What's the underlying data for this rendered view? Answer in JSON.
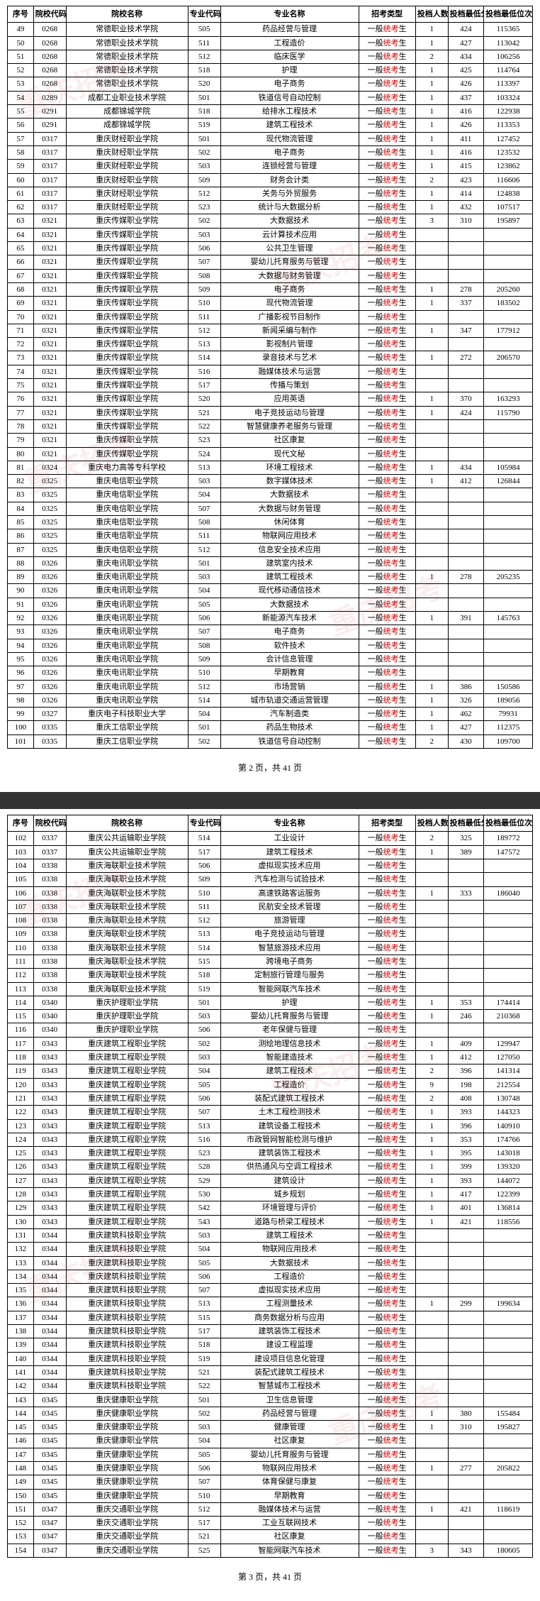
{
  "headers": [
    "序号",
    "院校代码",
    "院校名称",
    "专业代码",
    "专业名称",
    "招考类型",
    "投档人数",
    "投档最低分",
    "投档最低位次"
  ],
  "pager2": "第 2 页，共 41 页",
  "pager3": "第 3 页，共 41 页",
  "watermark": "重庆招考",
  "page2_rows": [
    [
      "49",
      "0268",
      "常德职业技术学院",
      "505",
      "药品经营与管理",
      "一般统考生",
      "1",
      "424",
      "115365"
    ],
    [
      "50",
      "0268",
      "常德职业技术学院",
      "511",
      "工程造价",
      "一般统考生",
      "1",
      "427",
      "113042"
    ],
    [
      "51",
      "0268",
      "常德职业技术学院",
      "512",
      "临床医学",
      "一般统考生",
      "2",
      "434",
      "106256"
    ],
    [
      "52",
      "0268",
      "常德职业技术学院",
      "518",
      "护理",
      "一般统考生",
      "1",
      "425",
      "114764"
    ],
    [
      "53",
      "0268",
      "常德职业技术学院",
      "520",
      "电子商务",
      "一般统考生",
      "1",
      "426",
      "113397"
    ],
    [
      "54",
      "0289",
      "成都工业职业技术学院",
      "501",
      "铁道信号自动控制",
      "一般统考生",
      "1",
      "437",
      "103324"
    ],
    [
      "55",
      "0291",
      "成都锦城学院",
      "518",
      "给排水工程技术",
      "一般统考生",
      "1",
      "416",
      "122938"
    ],
    [
      "56",
      "0291",
      "成都锦城学院",
      "519",
      "建筑工程技术",
      "一般统考生",
      "1",
      "426",
      "113353"
    ],
    [
      "57",
      "0317",
      "重庆财经职业学院",
      "501",
      "现代物流管理",
      "一般统考生",
      "1",
      "411",
      "127452"
    ],
    [
      "58",
      "0317",
      "重庆财经职业学院",
      "502",
      "电子商务",
      "一般统考生",
      "1",
      "416",
      "123532"
    ],
    [
      "59",
      "0317",
      "重庆财经职业学院",
      "503",
      "连锁经营与管理",
      "一般统考生",
      "1",
      "415",
      "123862"
    ],
    [
      "60",
      "0317",
      "重庆财经职业学院",
      "509",
      "财务会计类",
      "一般统考生",
      "2",
      "423",
      "116606"
    ],
    [
      "61",
      "0317",
      "重庆财经职业学院",
      "512",
      "关务与外贸服务",
      "一般统考生",
      "1",
      "414",
      "124838"
    ],
    [
      "62",
      "0317",
      "重庆财经职业学院",
      "523",
      "统计与大数据分析",
      "一般统考生",
      "1",
      "432",
      "107517"
    ],
    [
      "63",
      "0321",
      "重庆传媒职业学院",
      "502",
      "大数据技术",
      "一般统考生",
      "3",
      "310",
      "195897"
    ],
    [
      "64",
      "0321",
      "重庆传媒职业学院",
      "503",
      "云计算技术应用",
      "一般统考生",
      "",
      "",
      ""
    ],
    [
      "65",
      "0321",
      "重庆传媒职业学院",
      "506",
      "公共卫生管理",
      "一般统考生",
      "",
      "",
      ""
    ],
    [
      "66",
      "0321",
      "重庆传媒职业学院",
      "507",
      "婴幼儿托育服务与管理",
      "一般统考生",
      "",
      "",
      ""
    ],
    [
      "67",
      "0321",
      "重庆传媒职业学院",
      "508",
      "大数据与财务管理",
      "一般统考生",
      "",
      "",
      ""
    ],
    [
      "68",
      "0321",
      "重庆传媒职业学院",
      "509",
      "电子商务",
      "一般统考生",
      "1",
      "278",
      "205260"
    ],
    [
      "69",
      "0321",
      "重庆传媒职业学院",
      "510",
      "现代物流管理",
      "一般统考生",
      "1",
      "337",
      "183502"
    ],
    [
      "70",
      "0321",
      "重庆传媒职业学院",
      "511",
      "广播影视节目制作",
      "一般统考生",
      "",
      "",
      ""
    ],
    [
      "71",
      "0321",
      "重庆传媒职业学院",
      "512",
      "新闻采编与制作",
      "一般统考生",
      "1",
      "347",
      "177912"
    ],
    [
      "72",
      "0321",
      "重庆传媒职业学院",
      "513",
      "影视制片管理",
      "一般统考生",
      "",
      "",
      ""
    ],
    [
      "73",
      "0321",
      "重庆传媒职业学院",
      "514",
      "录音技术与艺术",
      "一般统考生",
      "1",
      "272",
      "206570"
    ],
    [
      "74",
      "0321",
      "重庆传媒职业学院",
      "516",
      "融媒体技术与运营",
      "一般统考生",
      "",
      "",
      ""
    ],
    [
      "75",
      "0321",
      "重庆传媒职业学院",
      "517",
      "传播与策划",
      "一般统考生",
      "",
      "",
      ""
    ],
    [
      "76",
      "0321",
      "重庆传媒职业学院",
      "520",
      "应用英语",
      "一般统考生",
      "1",
      "370",
      "163293"
    ],
    [
      "77",
      "0321",
      "重庆传媒职业学院",
      "521",
      "电子竞技运动与管理",
      "一般统考生",
      "1",
      "424",
      "115790"
    ],
    [
      "78",
      "0321",
      "重庆传媒职业学院",
      "522",
      "智慧健康养老服务与管理",
      "一般统考生",
      "",
      "",
      ""
    ],
    [
      "79",
      "0321",
      "重庆传媒职业学院",
      "523",
      "社区康复",
      "一般统考生",
      "",
      "",
      ""
    ],
    [
      "80",
      "0321",
      "重庆传媒职业学院",
      "524",
      "现代文秘",
      "一般统考生",
      "",
      "",
      ""
    ],
    [
      "81",
      "0324",
      "重庆电力高等专科学校",
      "513",
      "环境工程技术",
      "一般统考生",
      "1",
      "434",
      "105984"
    ],
    [
      "82",
      "0325",
      "重庆电信职业学院",
      "503",
      "数字媒体技术",
      "一般统考生",
      "1",
      "412",
      "126844"
    ],
    [
      "83",
      "0325",
      "重庆电信职业学院",
      "504",
      "大数据技术",
      "一般统考生",
      "",
      "",
      ""
    ],
    [
      "84",
      "0325",
      "重庆电信职业学院",
      "507",
      "大数据与财务管理",
      "一般统考生",
      "",
      "",
      ""
    ],
    [
      "85",
      "0325",
      "重庆电信职业学院",
      "508",
      "休闲体育",
      "一般统考生",
      "",
      "",
      ""
    ],
    [
      "86",
      "0325",
      "重庆电信职业学院",
      "511",
      "物联网应用技术",
      "一般统考生",
      "",
      "",
      ""
    ],
    [
      "87",
      "0325",
      "重庆电信职业学院",
      "512",
      "信息安全技术应用",
      "一般统考生",
      "",
      "",
      ""
    ],
    [
      "88",
      "0326",
      "重庆电讯职业学院",
      "501",
      "建筑室内技术",
      "一般统考生",
      "",
      "",
      ""
    ],
    [
      "89",
      "0326",
      "重庆电讯职业学院",
      "503",
      "建筑工程技术",
      "一般统考生",
      "1",
      "278",
      "205235"
    ],
    [
      "90",
      "0326",
      "重庆电讯职业学院",
      "504",
      "现代移动通信技术",
      "一般统考生",
      "",
      "",
      ""
    ],
    [
      "91",
      "0326",
      "重庆电讯职业学院",
      "505",
      "大数据技术",
      "一般统考生",
      "",
      "",
      ""
    ],
    [
      "92",
      "0326",
      "重庆电讯职业学院",
      "506",
      "新能源汽车技术",
      "一般统考生",
      "1",
      "391",
      "145763"
    ],
    [
      "93",
      "0326",
      "重庆电讯职业学院",
      "507",
      "电子商务",
      "一般统考生",
      "",
      "",
      ""
    ],
    [
      "94",
      "0326",
      "重庆电讯职业学院",
      "508",
      "软件技术",
      "一般统考生",
      "",
      "",
      ""
    ],
    [
      "95",
      "0326",
      "重庆电讯职业学院",
      "509",
      "会计信息管理",
      "一般统考生",
      "",
      "",
      ""
    ],
    [
      "96",
      "0326",
      "重庆电讯职业学院",
      "510",
      "早期教育",
      "一般统考生",
      "",
      "",
      ""
    ],
    [
      "97",
      "0326",
      "重庆电讯职业学院",
      "512",
      "市场营销",
      "一般统考生",
      "1",
      "386",
      "150586"
    ],
    [
      "98",
      "0326",
      "重庆电讯职业学院",
      "514",
      "城市轨道交通运营管理",
      "一般统考生",
      "1",
      "326",
      "189056"
    ],
    [
      "99",
      "0327",
      "重庆电子科技职业大学",
      "504",
      "汽车制造类",
      "一般统考生",
      "1",
      "462",
      "79931"
    ],
    [
      "100",
      "0335",
      "重庆工信职业学院",
      "501",
      "药品生物技术",
      "一般统考生",
      "1",
      "427",
      "112375"
    ],
    [
      "101",
      "0335",
      "重庆工信职业学院",
      "502",
      "铁道信号自动控制",
      "一般统考生",
      "2",
      "430",
      "109700"
    ]
  ],
  "page3_rows": [
    [
      "102",
      "0337",
      "重庆公共运输职业学院",
      "514",
      "工业设计",
      "一般统考生",
      "2",
      "325",
      "189772"
    ],
    [
      "103",
      "0337",
      "重庆公共运输职业学院",
      "517",
      "建筑工程技术",
      "一般统考生",
      "1",
      "389",
      "147572"
    ],
    [
      "104",
      "0338",
      "重庆海联职业技术学院",
      "506",
      "虚拟现实技术应用",
      "一般统考生",
      "",
      "",
      ""
    ],
    [
      "105",
      "0338",
      "重庆海联职业技术学院",
      "509",
      "汽车检测与试验技术",
      "一般统考生",
      "",
      "",
      ""
    ],
    [
      "106",
      "0338",
      "重庆海联职业技术学院",
      "510",
      "高速铁路客运服务",
      "一般统考生",
      "1",
      "333",
      "186040"
    ],
    [
      "107",
      "0338",
      "重庆海联职业技术学院",
      "511",
      "民航安全技术管理",
      "一般统考生",
      "",
      "",
      ""
    ],
    [
      "108",
      "0338",
      "重庆海联职业技术学院",
      "512",
      "旅游管理",
      "一般统考生",
      "",
      "",
      ""
    ],
    [
      "109",
      "0338",
      "重庆海联职业技术学院",
      "513",
      "电子竞技运动与管理",
      "一般统考生",
      "",
      "",
      ""
    ],
    [
      "110",
      "0338",
      "重庆海联职业技术学院",
      "514",
      "智慧旅游技术应用",
      "一般统考生",
      "",
      "",
      ""
    ],
    [
      "111",
      "0338",
      "重庆海联职业技术学院",
      "515",
      "跨境电子商务",
      "一般统考生",
      "",
      "",
      ""
    ],
    [
      "112",
      "0338",
      "重庆海联职业技术学院",
      "518",
      "定制旅行管理与服务",
      "一般统考生",
      "",
      "",
      ""
    ],
    [
      "113",
      "0338",
      "重庆海联职业技术学院",
      "519",
      "智能网联汽车技术",
      "一般统考生",
      "",
      "",
      ""
    ],
    [
      "114",
      "0340",
      "重庆护理职业学院",
      "501",
      "护理",
      "一般统考生",
      "1",
      "353",
      "174414"
    ],
    [
      "115",
      "0340",
      "重庆护理职业学院",
      "503",
      "婴幼儿托育服务与管理",
      "一般统考生",
      "1",
      "246",
      "210368"
    ],
    [
      "116",
      "0340",
      "重庆护理职业学院",
      "506",
      "老年保健与管理",
      "一般统考生",
      "",
      "",
      ""
    ],
    [
      "117",
      "0343",
      "重庆建筑工程职业学院",
      "502",
      "测绘地理信息技术",
      "一般统考生",
      "1",
      "409",
      "129947"
    ],
    [
      "118",
      "0343",
      "重庆建筑工程职业学院",
      "503",
      "智能建造技术",
      "一般统考生",
      "1",
      "412",
      "127050"
    ],
    [
      "119",
      "0343",
      "重庆建筑工程职业学院",
      "504",
      "建筑工程技术",
      "一般统考生",
      "2",
      "396",
      "141314"
    ],
    [
      "120",
      "0343",
      "重庆建筑工程职业学院",
      "505",
      "工程造价",
      "一般统考生",
      "9",
      "198",
      "212554"
    ],
    [
      "121",
      "0343",
      "重庆建筑工程职业学院",
      "506",
      "装配式建筑工程技术",
      "一般统考生",
      "2",
      "408",
      "130748"
    ],
    [
      "122",
      "0343",
      "重庆建筑工程职业学院",
      "507",
      "土木工程检测技术",
      "一般统考生",
      "1",
      "393",
      "144323"
    ],
    [
      "123",
      "0343",
      "重庆建筑工程职业学院",
      "513",
      "建筑设备工程技术",
      "一般统考生",
      "1",
      "396",
      "140910"
    ],
    [
      "124",
      "0343",
      "重庆建筑工程职业学院",
      "516",
      "市政管网智能检测与维护",
      "一般统考生",
      "1",
      "353",
      "174766"
    ],
    [
      "125",
      "0343",
      "重庆建筑工程职业学院",
      "523",
      "建筑装饰工程技术",
      "一般统考生",
      "1",
      "395",
      "143018"
    ],
    [
      "126",
      "0343",
      "重庆建筑工程职业学院",
      "528",
      "供热通风与空调工程技术",
      "一般统考生",
      "1",
      "399",
      "139320"
    ],
    [
      "127",
      "0343",
      "重庆建筑工程职业学院",
      "529",
      "建筑设计",
      "一般统考生",
      "1",
      "393",
      "144072"
    ],
    [
      "128",
      "0343",
      "重庆建筑工程职业学院",
      "530",
      "城乡规划",
      "一般统考生",
      "1",
      "417",
      "122399"
    ],
    [
      "129",
      "0343",
      "重庆建筑工程职业学院",
      "542",
      "环境管理与评价",
      "一般统考生",
      "1",
      "401",
      "136814"
    ],
    [
      "130",
      "0343",
      "重庆建筑工程职业学院",
      "543",
      "道路与桥梁工程技术",
      "一般统考生",
      "1",
      "421",
      "118556"
    ],
    [
      "131",
      "0344",
      "重庆建筑科技职业学院",
      "503",
      "建筑工程技术",
      "一般统考生",
      "",
      "",
      ""
    ],
    [
      "132",
      "0344",
      "重庆建筑科技职业学院",
      "504",
      "物联网应用技术",
      "一般统考生",
      "",
      "",
      ""
    ],
    [
      "133",
      "0344",
      "重庆建筑科技职业学院",
      "505",
      "大数据技术",
      "一般统考生",
      "",
      "",
      ""
    ],
    [
      "134",
      "0344",
      "重庆建筑科技职业学院",
      "506",
      "工程造价",
      "一般统考生",
      "",
      "",
      ""
    ],
    [
      "135",
      "0344",
      "重庆建筑科技职业学院",
      "507",
      "虚拟现实技术应用",
      "一般统考生",
      "",
      "",
      ""
    ],
    [
      "136",
      "0344",
      "重庆建筑科技职业学院",
      "513",
      "工程测量技术",
      "一般统考生",
      "1",
      "299",
      "199634"
    ],
    [
      "137",
      "0344",
      "重庆建筑科技职业学院",
      "515",
      "商务数据分析与应用",
      "一般统考生",
      "",
      "",
      ""
    ],
    [
      "138",
      "0344",
      "重庆建筑科技职业学院",
      "517",
      "建筑装饰工程技术",
      "一般统考生",
      "",
      "",
      ""
    ],
    [
      "139",
      "0344",
      "重庆建筑科技职业学院",
      "518",
      "建设工程监理",
      "一般统考生",
      "",
      "",
      ""
    ],
    [
      "140",
      "0344",
      "重庆建筑科技职业学院",
      "519",
      "建设项目信息化管理",
      "一般统考生",
      "",
      "",
      ""
    ],
    [
      "141",
      "0344",
      "重庆建筑科技职业学院",
      "521",
      "装配式建筑工程技术",
      "一般统考生",
      "",
      "",
      ""
    ],
    [
      "142",
      "0344",
      "重庆建筑科技职业学院",
      "522",
      "智慧城市工程技术",
      "一般统考生",
      "",
      "",
      ""
    ],
    [
      "143",
      "0345",
      "重庆健康职业学院",
      "501",
      "卫生信息管理",
      "一般统考生",
      "",
      "",
      ""
    ],
    [
      "144",
      "0345",
      "重庆健康职业学院",
      "502",
      "药品经营与管理",
      "一般统考生",
      "1",
      "380",
      "155484"
    ],
    [
      "145",
      "0345",
      "重庆健康职业学院",
      "503",
      "健康管理",
      "一般统考生",
      "1",
      "310",
      "195827"
    ],
    [
      "146",
      "0345",
      "重庆健康职业学院",
      "504",
      "社区康复",
      "一般统考生",
      "",
      "",
      ""
    ],
    [
      "147",
      "0345",
      "重庆健康职业学院",
      "505",
      "婴幼儿托育服务与管理",
      "一般统考生",
      "",
      "",
      ""
    ],
    [
      "148",
      "0345",
      "重庆健康职业学院",
      "506",
      "物联网应用技术",
      "一般统考生",
      "1",
      "277",
      "205822"
    ],
    [
      "149",
      "0345",
      "重庆健康职业学院",
      "507",
      "体育保健与康复",
      "一般统考生",
      "",
      "",
      ""
    ],
    [
      "150",
      "0345",
      "重庆健康职业学院",
      "510",
      "早期教育",
      "一般统考生",
      "",
      "",
      ""
    ],
    [
      "151",
      "0347",
      "重庆交通职业学院",
      "512",
      "融媒体技术与运营",
      "一般统考生",
      "1",
      "421",
      "118619"
    ],
    [
      "152",
      "0347",
      "重庆交通职业学院",
      "517",
      "工业互联网技术",
      "一般统考生",
      "",
      "",
      ""
    ],
    [
      "153",
      "0347",
      "重庆交通职业学院",
      "521",
      "社区康复",
      "一般统考生",
      "",
      "",
      ""
    ],
    [
      "154",
      "0347",
      "重庆交通职业学院",
      "525",
      "智能网联汽车技术",
      "一般统考生",
      "3",
      "343",
      "180605"
    ]
  ]
}
